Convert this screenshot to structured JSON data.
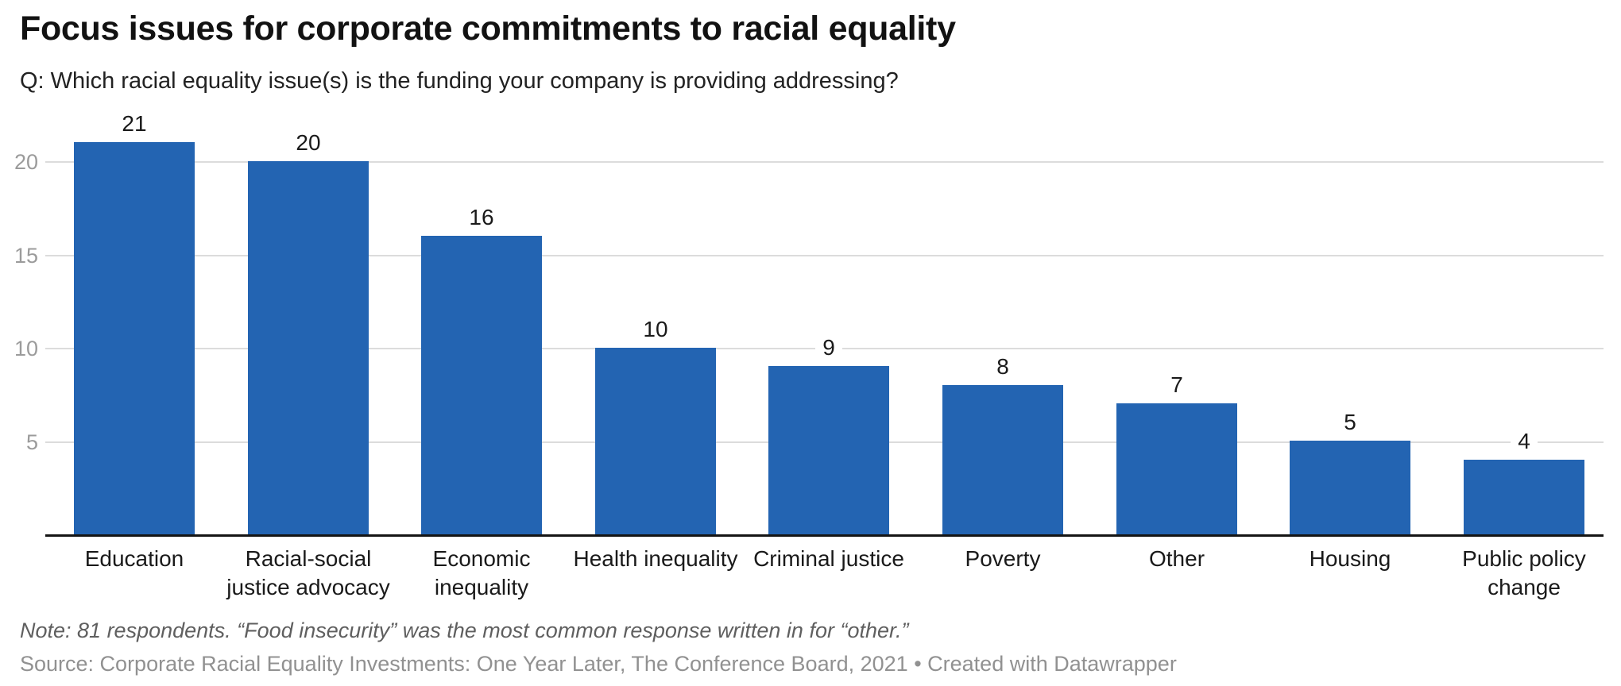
{
  "header": {
    "title": "Focus issues for corporate commitments to racial equality",
    "subtitle": "Q: Which racial equality issue(s) is the funding your company is providing addressing?"
  },
  "chart_data": {
    "type": "bar",
    "title": "Focus issues for corporate commitments to racial equality",
    "subtitle": "Q: Which racial equality issue(s) is the funding your company is providing addressing?",
    "categories": [
      "Education",
      "Racial-social\njustice advocacy",
      "Economic\ninequality",
      "Health inequality",
      "Criminal justice",
      "Poverty",
      "Other",
      "Housing",
      "Public policy\nchange"
    ],
    "values": [
      21,
      20,
      16,
      10,
      9,
      8,
      7,
      5,
      4
    ],
    "xlabel": "",
    "ylabel": "",
    "yticks": [
      5,
      10,
      15,
      20
    ],
    "ylim": [
      0,
      22.8
    ],
    "grid": true,
    "legend": false,
    "value_labels_shown": true,
    "bar_color": "#2364b2",
    "gridline_color": "#dcdcdc",
    "axis_color": "#141414",
    "tick_label_color": "#9b9b9b"
  },
  "footer": {
    "note": "Note: 81 respondents. “Food insecurity” was the most common response written in for “other.”",
    "source_text": "Source: Corporate Racial Equality Investments: One Year Later, The Conference Board, 2021",
    "separator": "•",
    "attribution": "Created with Datawrapper"
  }
}
